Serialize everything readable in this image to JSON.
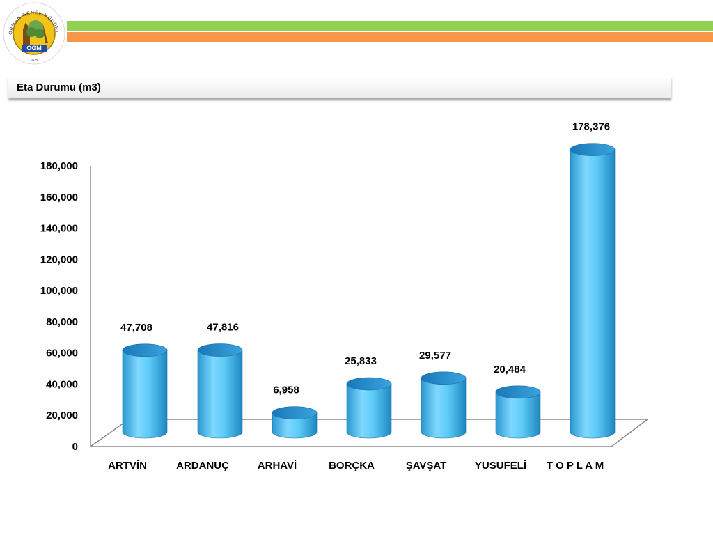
{
  "header": {
    "logo": {
      "icon": "ogm-seal-logo",
      "ring_text": "ORMAN GENEL MÜDÜRLÜĞÜ",
      "center_text": "OGM",
      "year": "1839"
    },
    "stripe_colors": {
      "green": "#92d050",
      "orange": "#f79646"
    }
  },
  "title": "Eta Durumu (m3)",
  "chart_data": {
    "type": "bar",
    "style": "3d-cylinder",
    "categories": [
      "ARTVİN",
      "ARDANUÇ",
      "ARHAVİ",
      "BORÇKA",
      "ŞAVŞAT",
      "YUSUFELİ",
      "T O P L A M"
    ],
    "values": [
      47708,
      47816,
      6958,
      25833,
      29577,
      20484,
      178376
    ],
    "data_labels": [
      "47,708",
      "47,816",
      "6,958",
      "25,833",
      "29,577",
      "20,484",
      "178,376"
    ],
    "y_ticks": [
      "0",
      "20,000",
      "40,000",
      "60,000",
      "80,000",
      "100,000",
      "120,000",
      "140,000",
      "160,000",
      "180,000"
    ],
    "ylim": [
      0,
      180000
    ],
    "title": "",
    "xlabel": "",
    "ylabel": "",
    "grid": false,
    "legend": "none",
    "bar_color": "#4fc3f0"
  }
}
